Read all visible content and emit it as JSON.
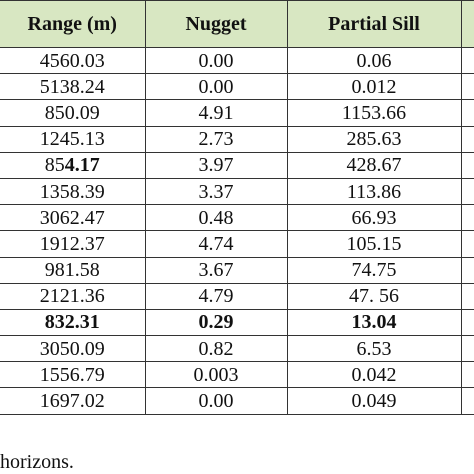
{
  "table": {
    "headers": [
      "Range (m)",
      "Nugget",
      "Partial Sill",
      ""
    ],
    "rows": [
      {
        "range": "4560.03",
        "nugget": "0.00",
        "sill": "0.06",
        "bold": false
      },
      {
        "range": "5138.24",
        "nugget": "0.00",
        "sill": "0.012",
        "bold": false
      },
      {
        "range": "850.09",
        "nugget": "4.91",
        "sill": "1153.66",
        "bold": false
      },
      {
        "range": "1245.13",
        "nugget": "2.73",
        "sill": "285.63",
        "bold": false
      },
      {
        "range_prefix": "85",
        "range_bold": "4.17",
        "nugget": "3.97",
        "sill": "428.67",
        "bold": false,
        "partial_bold": true
      },
      {
        "range": "1358.39",
        "nugget": "3.37",
        "sill": "113.86",
        "bold": false
      },
      {
        "range": "3062.47",
        "nugget": "0.48",
        "sill": "66.93",
        "bold": false
      },
      {
        "range": "1912.37",
        "nugget": "4.74",
        "sill": "105.15",
        "bold": false
      },
      {
        "range": "981.58",
        "nugget": "3.67",
        "sill": "74.75",
        "bold": false
      },
      {
        "range": "2121.36",
        "nugget": "4.79",
        "sill": "47. 56",
        "bold": false
      },
      {
        "range": "832.31",
        "nugget": "0.29",
        "sill": "13.04",
        "bold": true
      },
      {
        "range": "3050.09",
        "nugget": "0.82",
        "sill": "6.53",
        "bold": false
      },
      {
        "range": "1556.79",
        "nugget": "0.003",
        "sill": "0.042",
        "bold": false
      },
      {
        "range": "1697.02",
        "nugget": "0.00",
        "sill": "0.049",
        "bold": false
      }
    ]
  },
  "footnote": "horizons."
}
